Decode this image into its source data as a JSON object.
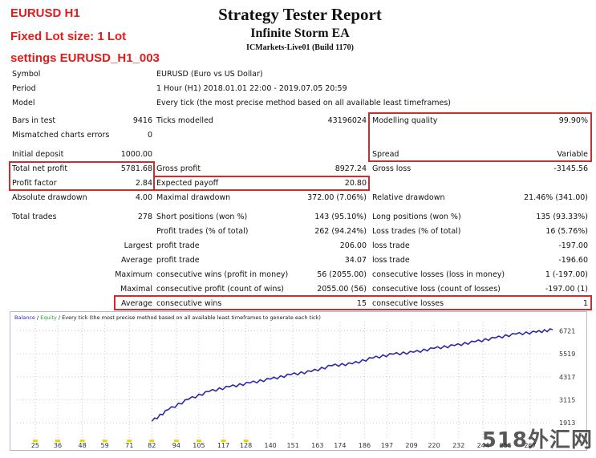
{
  "annotations": {
    "pair": "EURUSD H1",
    "lot": "Fixed Lot size: 1 Lot",
    "settings": "settings EURUSD_H1_003"
  },
  "header": {
    "title": "Strategy Tester Report",
    "ea_name": "Infinite Storm EA",
    "server": "ICMarkets-Live01 (Build 1170)"
  },
  "info": {
    "symbol_label": "Symbol",
    "symbol_value": "EURUSD (Euro vs US Dollar)",
    "period_label": "Period",
    "period_value": "1 Hour (H1) 2018.01.01 22:00 - 2019.07.05 20:59",
    "model_label": "Model",
    "model_value": "Every tick (the most precise method based on all available least timeframes)"
  },
  "stats": {
    "bars_label": "Bars in test",
    "bars_value": "9416",
    "ticks_label": "Ticks modelled",
    "ticks_value": "43196024",
    "quality_label": "Modelling quality",
    "quality_value": "99.90%",
    "mismatch_label": "Mismatched charts errors",
    "mismatch_value": "0",
    "deposit_label": "Initial deposit",
    "deposit_value": "1000.00",
    "spread_label": "Spread",
    "spread_value": "Variable",
    "net_label": "Total net profit",
    "net_value": "5781.68",
    "gross_profit_label": "Gross profit",
    "gross_profit_value": "8927.24",
    "gross_loss_label": "Gross loss",
    "gross_loss_value": "-3145.56",
    "pf_label": "Profit factor",
    "pf_value": "2.84",
    "ep_label": "Expected payoff",
    "ep_value": "20.80",
    "abs_dd_label": "Absolute drawdown",
    "abs_dd_value": "4.00",
    "max_dd_label": "Maximal drawdown",
    "max_dd_value": "372.00 (7.06%)",
    "rel_dd_label": "Relative drawdown",
    "rel_dd_value": "21.46% (341.00)",
    "trades_label": "Total trades",
    "trades_value": "278",
    "short_label": "Short positions (won %)",
    "short_value": "143 (95.10%)",
    "long_label": "Long positions (won %)",
    "long_value": "135 (93.33%)",
    "pt_label": "Profit trades (% of total)",
    "pt_value": "262 (94.24%)",
    "lt_label": "Loss trades (% of total)",
    "lt_value": "16 (5.76%)",
    "largest_prefix": "Largest",
    "largest_pt_label": "profit trade",
    "largest_pt_value": "206.00",
    "largest_lt_label": "loss trade",
    "largest_lt_value": "-197.00",
    "average_prefix": "Average",
    "avg_pt_label": "profit trade",
    "avg_pt_value": "34.07",
    "avg_lt_label": "loss trade",
    "avg_lt_value": "-196.60",
    "maximum_prefix": "Maximum",
    "max_cw_label": "consecutive wins (profit in money)",
    "max_cw_value": "56 (2055.00)",
    "max_cl_label": "consecutive losses (loss in money)",
    "max_cl_value": "1 (-197.00)",
    "maximal_prefix": "Maximal",
    "mxl_cp_label": "consecutive profit (count of wins)",
    "mxl_cp_value": "2055.00 (56)",
    "mxl_cl_label": "consecutive loss (count of losses)",
    "mxl_cl_value": "-197.00 (1)",
    "average2_prefix": "Average",
    "avg_cw_label": "consecutive wins",
    "avg_cw_value": "15",
    "avg_cl_label": "consecutive losses",
    "avg_cl_value": "1"
  },
  "chart": {
    "legend_balance": "Balance",
    "legend_sep1": " / ",
    "legend_equity": "Equity",
    "legend_rest": " / Every tick (the most precise method based on all available least timeframes to generate each tick)",
    "colors": {
      "balance": "#2a2aa8",
      "equity": "#2ca02c",
      "volume": "#e8d800"
    }
  },
  "chart_data": {
    "type": "line",
    "x_ticks": [
      "25",
      "36",
      "48",
      "59",
      "71",
      "82",
      "94",
      "105",
      "117",
      "128",
      "140",
      "151",
      "163",
      "174",
      "186",
      "197",
      "209",
      "220",
      "232",
      "244",
      "255",
      "267"
    ],
    "y_ticks": [
      "6721",
      "5519",
      "4317",
      "3115",
      "1913"
    ],
    "ylim": [
      1000,
      7200
    ],
    "xlim": [
      16,
      278
    ],
    "series": [
      {
        "name": "Balance",
        "x": [
          82,
          90,
          100,
          110,
          120,
          130,
          140,
          150,
          160,
          170,
          180,
          190,
          200,
          210,
          220,
          230,
          240,
          250,
          260,
          270,
          278
        ],
        "y": [
          2000,
          2600,
          3150,
          3550,
          3800,
          4000,
          4200,
          4430,
          4600,
          4900,
          5000,
          5300,
          5500,
          5600,
          5800,
          5950,
          6150,
          6350,
          6550,
          6650,
          6780
        ]
      }
    ]
  },
  "watermark": "518外汇网"
}
